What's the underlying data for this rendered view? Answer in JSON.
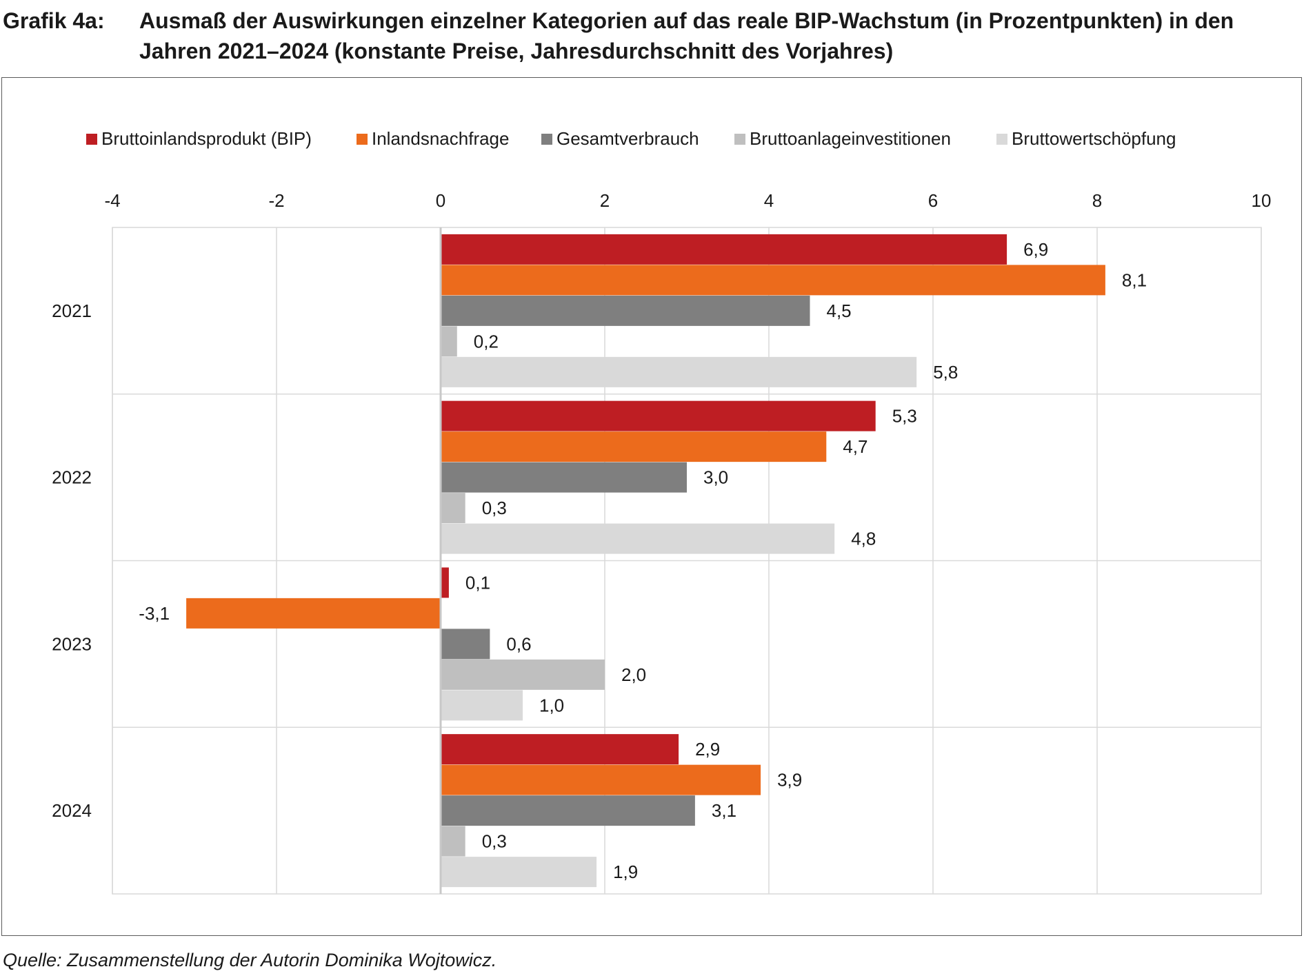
{
  "figure": {
    "label": "Grafik 4a:",
    "title": "Ausmaß der Auswirkungen einzelner Kategorien auf das reale BIP-Wachstum (in Prozentpunkten) in den Jahren 2021–2024 (konstante Preise, Jahresdurchschnitt des Vorjahres)",
    "source": "Quelle: Zusammenstellung der Autorin Dominika Wojtowicz."
  },
  "chart_data": {
    "type": "bar",
    "orientation": "horizontal",
    "categories": [
      "2021",
      "2022",
      "2023",
      "2024"
    ],
    "series": [
      {
        "name": "Bruttoinlandsprodukt (BIP)",
        "color": "#be1e23",
        "values": [
          6.9,
          5.3,
          0.1,
          2.9
        ],
        "labels": [
          "6,9",
          "5,3",
          "0,1",
          "2,9"
        ]
      },
      {
        "name": "Inlandsnachfrage",
        "color": "#ec6b1c",
        "values": [
          8.1,
          4.7,
          -3.1,
          3.9
        ],
        "labels": [
          "8,1",
          "4,7",
          "-3,1",
          "3,9"
        ]
      },
      {
        "name": "Gesamtverbrauch",
        "color": "#7f7f7f",
        "values": [
          4.5,
          3.0,
          0.6,
          3.1
        ],
        "labels": [
          "4,5",
          "3,0",
          "0,6",
          "3,1"
        ]
      },
      {
        "name": "Bruttoanlageinvestitionen",
        "color": "#bfbfbf",
        "values": [
          0.2,
          0.3,
          2.0,
          0.3
        ],
        "labels": [
          "0,2",
          "0,3",
          "2,0",
          "0,3"
        ]
      },
      {
        "name": "Bruttowertschöpfung",
        "color": "#d9d9d9",
        "values": [
          5.8,
          4.8,
          1.0,
          1.9
        ],
        "labels": [
          "5,8",
          "4,8",
          "1,0",
          "1,9"
        ]
      }
    ],
    "xlim": [
      -4,
      10
    ],
    "xticks": [
      -4,
      -2,
      0,
      2,
      4,
      6,
      8,
      10
    ],
    "xtick_labels": [
      "-4",
      "-2",
      "0",
      "2",
      "4",
      "6",
      "8",
      "10"
    ],
    "grid": true,
    "legend_position": "top",
    "xlabel": "",
    "ylabel": ""
  }
}
